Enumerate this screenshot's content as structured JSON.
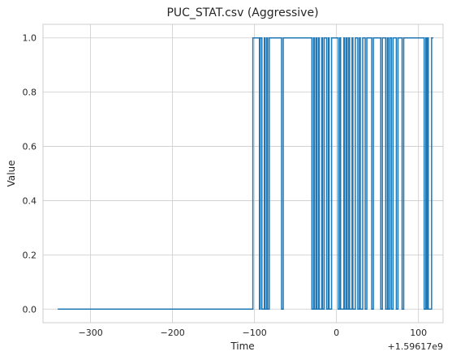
{
  "chart_data": {
    "type": "line",
    "step": true,
    "title": "PUC_STAT.csv (Aggressive)",
    "xlabel": "Time",
    "ylabel": "Value",
    "offset_text": "+1.59617e9",
    "xlim": [
      -358,
      130
    ],
    "ylim": [
      -0.05,
      1.05
    ],
    "xticks": [
      -300,
      -200,
      -100,
      0,
      100
    ],
    "xtick_labels": [
      "−300",
      "−200",
      "−100",
      "0",
      "100"
    ],
    "yticks": [
      0.0,
      0.2,
      0.4,
      0.6,
      0.8,
      1.0
    ],
    "ytick_labels": [
      "0.0",
      "0.2",
      "0.4",
      "0.6",
      "0.8",
      "1.0"
    ],
    "grid": true,
    "line_color": "#1f77b4",
    "grid_color": "#cccccc",
    "series": [
      {
        "x": [
          -340,
          -102,
          -94,
          -93,
          -91,
          -88,
          -87,
          -85,
          -84,
          -82,
          -67,
          -65,
          -30,
          -28,
          -27,
          -25,
          -24,
          -22,
          -21,
          -18,
          -17,
          -15,
          -12,
          -10,
          -9,
          -6,
          2,
          4,
          5,
          9,
          10,
          12,
          13,
          15,
          16,
          19,
          20,
          23,
          26,
          28,
          29,
          32,
          35,
          37,
          43,
          45,
          54,
          56,
          60,
          62,
          63,
          65,
          67,
          69,
          73,
          75,
          80,
          82,
          107,
          109,
          110,
          111,
          112,
          116
        ],
        "y": [
          0,
          1,
          0,
          1,
          0,
          1,
          0,
          1,
          0,
          1,
          0,
          1,
          0,
          1,
          0,
          1,
          0,
          1,
          0,
          1,
          0,
          1,
          0,
          1,
          0,
          1,
          0,
          1,
          0,
          1,
          0,
          1,
          0,
          1,
          0,
          1,
          0,
          1,
          0,
          1,
          0,
          1,
          0,
          1,
          0,
          1,
          0,
          1,
          0,
          1,
          0,
          1,
          0,
          1,
          0,
          1,
          0,
          1,
          0,
          1,
          0,
          1,
          0,
          1
        ]
      }
    ],
    "x_end": 118
  }
}
